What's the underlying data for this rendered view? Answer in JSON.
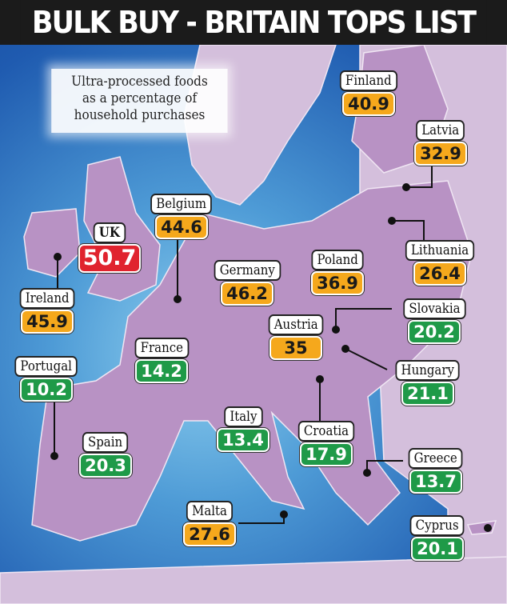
{
  "title": "BULK BUY - BRITAIN TOPS LIST",
  "legend": [
    "Ultra-processed foods",
    "as a percentage of",
    "household purchases"
  ],
  "colors": {
    "high": "#e0232e",
    "medium": "#f5a81c",
    "low": "#1f9a48",
    "land": "#b892c4",
    "sea": "#4e9bd6"
  },
  "countries": [
    {
      "name": "Finland",
      "value": "40.9",
      "level": "orange"
    },
    {
      "name": "Latvia",
      "value": "32.9",
      "level": "orange"
    },
    {
      "name": "Belgium",
      "value": "44.6",
      "level": "orange"
    },
    {
      "name": "UK",
      "value": "50.7",
      "level": "red"
    },
    {
      "name": "Germany",
      "value": "46.2",
      "level": "orange"
    },
    {
      "name": "Poland",
      "value": "36.9",
      "level": "orange"
    },
    {
      "name": "Lithuania",
      "value": "26.4",
      "level": "orange"
    },
    {
      "name": "Ireland",
      "value": "45.9",
      "level": "orange"
    },
    {
      "name": "Austria",
      "value": "35",
      "level": "orange"
    },
    {
      "name": "Slovakia",
      "value": "20.2",
      "level": "green"
    },
    {
      "name": "France",
      "value": "14.2",
      "level": "green"
    },
    {
      "name": "Portugal",
      "value": "10.2",
      "level": "green"
    },
    {
      "name": "Hungary",
      "value": "21.1",
      "level": "green"
    },
    {
      "name": "Italy",
      "value": "13.4",
      "level": "green"
    },
    {
      "name": "Croatia",
      "value": "17.9",
      "level": "green"
    },
    {
      "name": "Spain",
      "value": "20.3",
      "level": "green"
    },
    {
      "name": "Greece",
      "value": "13.7",
      "level": "green"
    },
    {
      "name": "Malta",
      "value": "27.6",
      "level": "orange"
    },
    {
      "name": "Cyprus",
      "value": "20.1",
      "level": "green"
    }
  ]
}
